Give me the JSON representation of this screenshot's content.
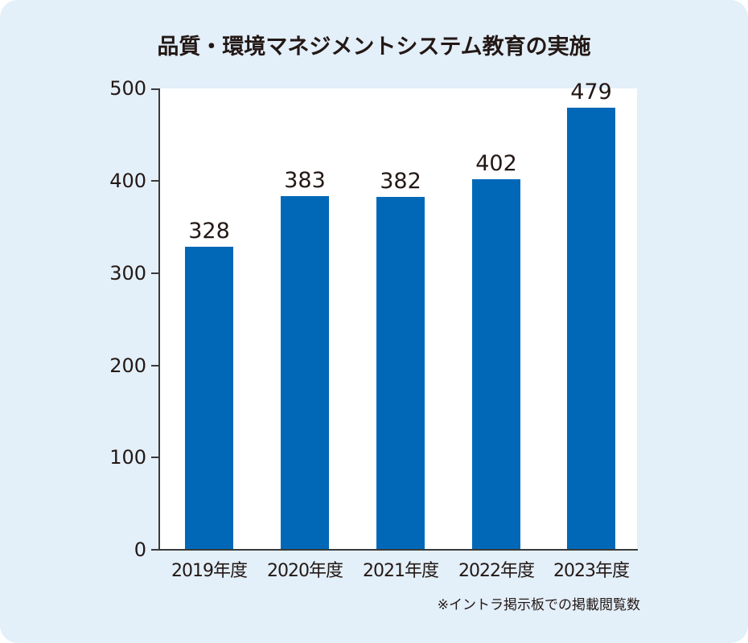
{
  "chart_data": {
    "type": "bar",
    "title": "品質・環境マネジメントシステム教育の実施",
    "categories": [
      "2019年度",
      "2020年度",
      "2021年度",
      "2022年度",
      "2023年度"
    ],
    "values": [
      328,
      383,
      382,
      402,
      479
    ],
    "value_labels": [
      "328",
      "383",
      "382",
      "402",
      "479"
    ],
    "xlabel": "",
    "ylabel": "",
    "ylim": [
      0,
      500
    ],
    "yticks": [
      "0",
      "100",
      "200",
      "300",
      "400",
      "500"
    ],
    "grid": false,
    "legend": null,
    "bar_color": "#0068b7",
    "note": "※イントラ掲示板での掲載閲覧数"
  },
  "colors": {
    "background": "#e3eff9",
    "plot_background": "#ffffff",
    "bar": "#0068b7",
    "text": "#231815"
  }
}
